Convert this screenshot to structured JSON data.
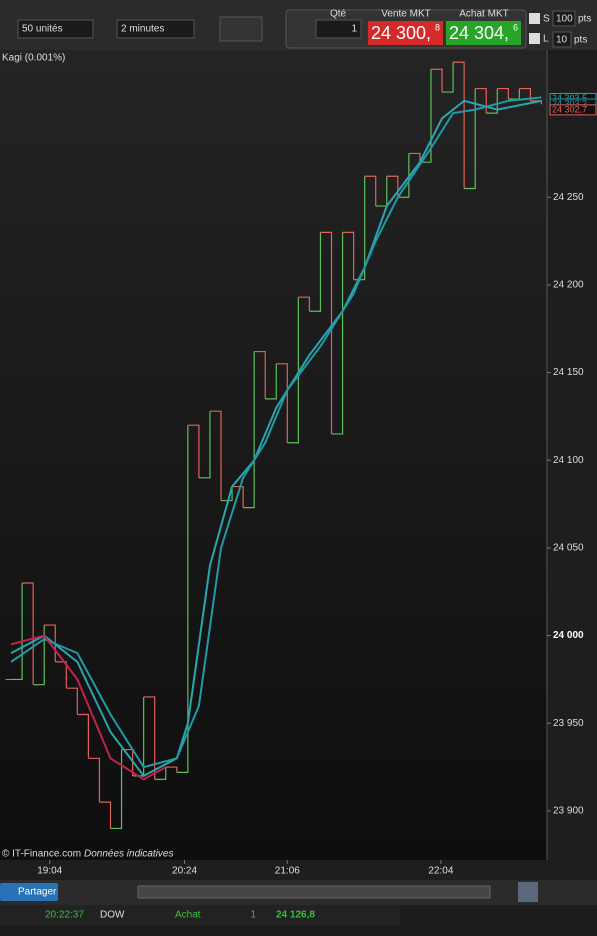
{
  "toolbar": {
    "units": "50 unités",
    "interval": "2 minutes",
    "qty_label": "Qté",
    "qty": "1",
    "sell_label": "Vente MKT",
    "sell_price": "24 300,",
    "sell_frac": "8",
    "buy_label": "Achat MKT",
    "buy_price": "24 304,",
    "buy_frac": "6",
    "s_label": "S",
    "s_value": "100",
    "s_unit": "pts",
    "l_label": "L",
    "l_value": "10",
    "l_unit": "pts"
  },
  "chart_header": "Kagi (0.001%)",
  "footer": {
    "copyright": "© IT-Finance.com",
    "note": "Données indicatives"
  },
  "chart_data": {
    "type": "kagi",
    "up_color": "#5cc05c",
    "down_color": "#e2615b",
    "kagi": {
      "values": [
        23975,
        24030,
        23972,
        24006,
        23985,
        23970,
        23955,
        23930,
        23905,
        23890,
        23935,
        23920,
        23965,
        23918,
        23925,
        23922,
        24120,
        24090,
        24128,
        24077,
        24085,
        24073,
        24162,
        24135,
        24155,
        24110,
        24193,
        24185,
        24230,
        24115,
        24230,
        24203,
        24262,
        24245,
        24262,
        24250,
        24275,
        24270,
        24323,
        24310,
        24327,
        24255,
        24312,
        24298,
        24312,
        24306,
        24312,
        24305,
        24303
      ]
    },
    "series": [
      {
        "name": "MA1",
        "color": "#2aa6b0",
        "x": [
          0,
          3,
          6,
          9,
          12,
          15,
          16,
          18,
          20,
          22,
          24,
          27,
          30,
          32,
          34,
          37,
          39,
          41,
          44,
          48
        ],
        "values": [
          23990,
          24000,
          23985,
          23945,
          23920,
          23930,
          23950,
          24040,
          24085,
          24100,
          24130,
          24160,
          24185,
          24210,
          24245,
          24270,
          24295,
          24305,
          24300,
          24305
        ]
      },
      {
        "name": "MA2",
        "color": "#1f9aa6",
        "x": [
          0,
          3,
          6,
          9,
          12,
          15,
          17,
          19,
          21,
          23,
          25,
          28,
          31,
          33,
          35,
          38,
          40,
          42,
          45,
          48
        ],
        "values": [
          23985,
          23998,
          23990,
          23955,
          23925,
          23930,
          23960,
          24050,
          24090,
          24110,
          24140,
          24165,
          24195,
          24225,
          24250,
          24278,
          24298,
          24300,
          24305,
          24307
        ]
      },
      {
        "name": "MA3",
        "color": "#c0224f",
        "x": [
          0,
          3,
          6,
          9,
          12,
          14
        ],
        "values": [
          23995,
          24000,
          23975,
          23930,
          23918,
          23925
        ]
      }
    ],
    "price_labels": [
      {
        "value": 24303.5,
        "label": "24 303,5",
        "color": "#2aa6b0"
      },
      {
        "value": 24303.2,
        "label": "24 303,2",
        "color": "#1f9aa6"
      },
      {
        "value": 24302.7,
        "label": "24 302,7",
        "color": "#e2615b"
      }
    ],
    "xlim": [
      -1,
      48.5
    ],
    "xticks": [
      {
        "value": 3.5,
        "label": "19:04"
      },
      {
        "value": 15.7,
        "label": "20:24"
      },
      {
        "value": 25,
        "label": "21:06"
      },
      {
        "value": 38.9,
        "label": "22:04"
      }
    ],
    "ylim": [
      23872,
      24334
    ],
    "yticks": [
      {
        "value": 23900,
        "label": "23 900"
      },
      {
        "value": 23950,
        "label": "23 950"
      },
      {
        "value": 24000,
        "label": "24 000"
      },
      {
        "value": 24050,
        "label": "24 050"
      },
      {
        "value": 24100,
        "label": "24 100"
      },
      {
        "value": 24150,
        "label": "24 150"
      },
      {
        "value": 24200,
        "label": "24 200"
      },
      {
        "value": 24250,
        "label": "24 250"
      }
    ]
  },
  "bottom": {
    "share": "Partager",
    "time": "20:22:37",
    "symbol": "DOW",
    "side": "Achat",
    "qty": "1",
    "price": "24 126,8"
  }
}
